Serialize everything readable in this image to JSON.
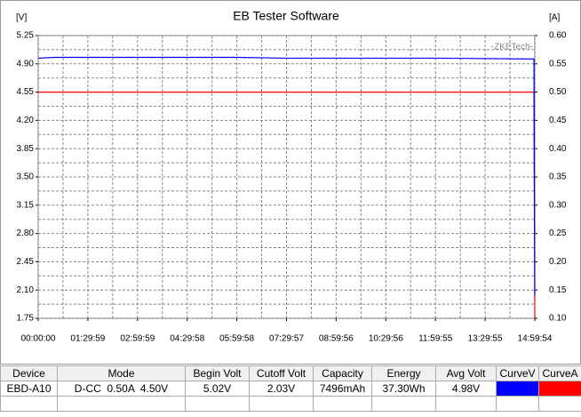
{
  "chart_data": {
    "type": "line",
    "title": "EB Tester Software",
    "y_label": "[V]",
    "y2_label": "[A]",
    "annotation": "-ZKETech-",
    "x": [
      0,
      1800,
      5399,
      16198,
      21598,
      26997,
      32396,
      43195,
      53900,
      53994
    ],
    "series": [
      {
        "name": "CurveV",
        "color": "#0000ff",
        "values": [
          4.97,
          4.98,
          4.98,
          4.98,
          4.98,
          4.97,
          4.97,
          4.97,
          4.96,
          2.03
        ]
      },
      {
        "name": "CurveA",
        "color": "#ff0000",
        "axis": "y2",
        "values": [
          0.5,
          0.5,
          0.5,
          0.5,
          0.5,
          0.5,
          0.5,
          0.5,
          0.5,
          0.1
        ]
      }
    ],
    "xlim": [
      0,
      53994
    ],
    "xticks": [
      {
        "value": 0,
        "label": "00:00:00"
      },
      {
        "value": 5399,
        "label": "01:29:59"
      },
      {
        "value": 10799,
        "label": "02:59:59"
      },
      {
        "value": 16198,
        "label": "04:29:58"
      },
      {
        "value": 21598,
        "label": "05:59:58"
      },
      {
        "value": 26997,
        "label": "07:29:57"
      },
      {
        "value": 32396,
        "label": "08:59:56"
      },
      {
        "value": 37796,
        "label": "10:29:56"
      },
      {
        "value": 43195,
        "label": "11:59:55"
      },
      {
        "value": 48595,
        "label": "13:29:55"
      },
      {
        "value": 53994,
        "label": "14:59:54"
      }
    ],
    "ylim": [
      1.75,
      5.25
    ],
    "yticks": [
      1.75,
      {
        "value": 2.1,
        "label": "2.10"
      },
      2.45,
      {
        "value": 2.8,
        "label": "2.80"
      },
      3.15,
      {
        "value": 3.5,
        "label": "3.50"
      },
      3.85,
      {
        "value": 4.2,
        "label": "4.20"
      },
      4.55,
      {
        "value": 4.9,
        "label": "4.90"
      },
      5.25
    ],
    "y2lim": [
      0.1,
      0.6
    ],
    "y2ticks": [
      {
        "value": 0.1,
        "label": "0.10"
      },
      0.15,
      {
        "value": 0.2,
        "label": "0.20"
      },
      0.25,
      {
        "value": 0.3,
        "label": "0.30"
      },
      0.35,
      {
        "value": 0.4,
        "label": "0.40"
      },
      0.45,
      {
        "value": 0.5,
        "label": "0.50"
      },
      0.55,
      {
        "value": 0.6,
        "label": "0.60"
      }
    ],
    "grid": true
  },
  "table": {
    "headers": [
      "Device",
      "Mode",
      "Begin Volt",
      "Cutoff Volt",
      "Capacity",
      "Energy",
      "Avg Volt",
      "CurveV",
      "CurveA"
    ],
    "rows": [
      [
        "EBD-A10",
        "D-CC  0.50A  4.50V",
        "5.02V",
        "2.03V",
        "7496mAh",
        "37.30Wh",
        "4.98V"
      ]
    ]
  }
}
